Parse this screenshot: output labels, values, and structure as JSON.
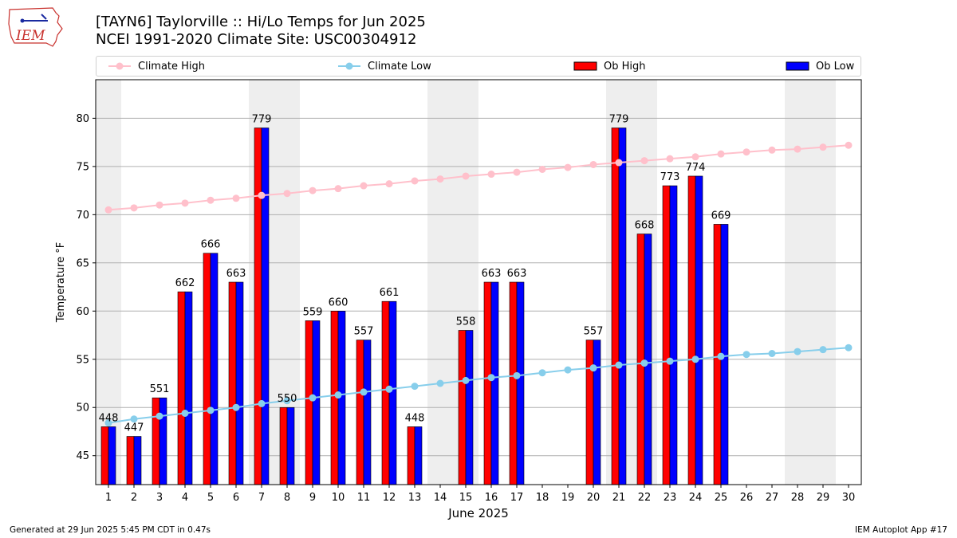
{
  "logo": {
    "text": "IEM"
  },
  "header": {
    "title": "[TAYN6] Taylorville :: Hi/Lo Temps for Jun 2025",
    "subtitle": "NCEI 1991-2020 Climate Site: USC00304912"
  },
  "legend": {
    "items": [
      {
        "label": "Climate High",
        "color": "#ffc0cb",
        "kind": "line"
      },
      {
        "label": "Climate Low",
        "color": "#87ceeb",
        "kind": "line"
      },
      {
        "label": "Ob High",
        "color": "#ff0000",
        "kind": "bar"
      },
      {
        "label": "Ob Low",
        "color": "#0000ff",
        "kind": "bar"
      }
    ]
  },
  "footer": {
    "left": "Generated at 29 Jun 2025 5:45 PM CDT in 0.47s",
    "right": "IEM Autoplot App #17"
  },
  "chart_data": {
    "type": "bar",
    "xlabel": "June 2025",
    "ylabel": "Temperature °F",
    "ylim": [
      42,
      84
    ],
    "yticks": [
      45,
      50,
      55,
      60,
      65,
      70,
      75,
      80
    ],
    "grid": "horizontal",
    "legend_position": "top",
    "categories": [
      1,
      2,
      3,
      4,
      5,
      6,
      7,
      8,
      9,
      10,
      11,
      12,
      13,
      14,
      15,
      16,
      17,
      18,
      19,
      20,
      21,
      22,
      23,
      24,
      25,
      26,
      27,
      28,
      29,
      30
    ],
    "weekend_days": [
      1,
      7,
      8,
      14,
      15,
      21,
      22,
      28,
      29
    ],
    "series": [
      {
        "name": "Ob High",
        "color": "#ff0000",
        "values": [
          48,
          47,
          51,
          62,
          66,
          63,
          79,
          50,
          59,
          60,
          57,
          61,
          48,
          null,
          58,
          63,
          63,
          null,
          null,
          57,
          79,
          68,
          73,
          74,
          69,
          null,
          null,
          null,
          null,
          null
        ]
      },
      {
        "name": "Ob Low",
        "color": "#0000ff",
        "values": [
          48,
          47,
          51,
          62,
          66,
          63,
          79,
          50,
          59,
          60,
          57,
          61,
          48,
          null,
          58,
          63,
          63,
          null,
          null,
          57,
          79,
          68,
          73,
          74,
          69,
          null,
          null,
          null,
          null,
          null
        ]
      },
      {
        "name": "Climate High",
        "color": "#ffc0cb",
        "values": [
          70.5,
          70.7,
          71.0,
          71.2,
          71.5,
          71.7,
          72.0,
          72.2,
          72.5,
          72.7,
          73.0,
          73.2,
          73.5,
          73.7,
          74.0,
          74.2,
          74.4,
          74.7,
          74.9,
          75.2,
          75.4,
          75.6,
          75.8,
          76.0,
          76.3,
          76.5,
          76.7,
          76.8,
          77.0,
          77.2
        ]
      },
      {
        "name": "Climate Low",
        "color": "#87ceeb",
        "values": [
          48.4,
          48.8,
          49.1,
          49.4,
          49.7,
          50.0,
          50.4,
          50.7,
          51.0,
          51.3,
          51.6,
          51.9,
          52.2,
          52.5,
          52.8,
          53.1,
          53.3,
          53.6,
          53.9,
          54.1,
          54.4,
          54.6,
          54.8,
          55.0,
          55.3,
          55.5,
          55.6,
          55.8,
          56.0,
          56.2
        ]
      }
    ],
    "data_labels": [
      "448",
      "447",
      "551",
      "662",
      "666",
      "663",
      "779",
      "550",
      "559",
      "660",
      "557",
      "661",
      "448",
      null,
      "558",
      "663",
      "663",
      null,
      null,
      "557",
      "779",
      "668",
      "773",
      "774",
      "669",
      null,
      null,
      null,
      null,
      null
    ]
  }
}
